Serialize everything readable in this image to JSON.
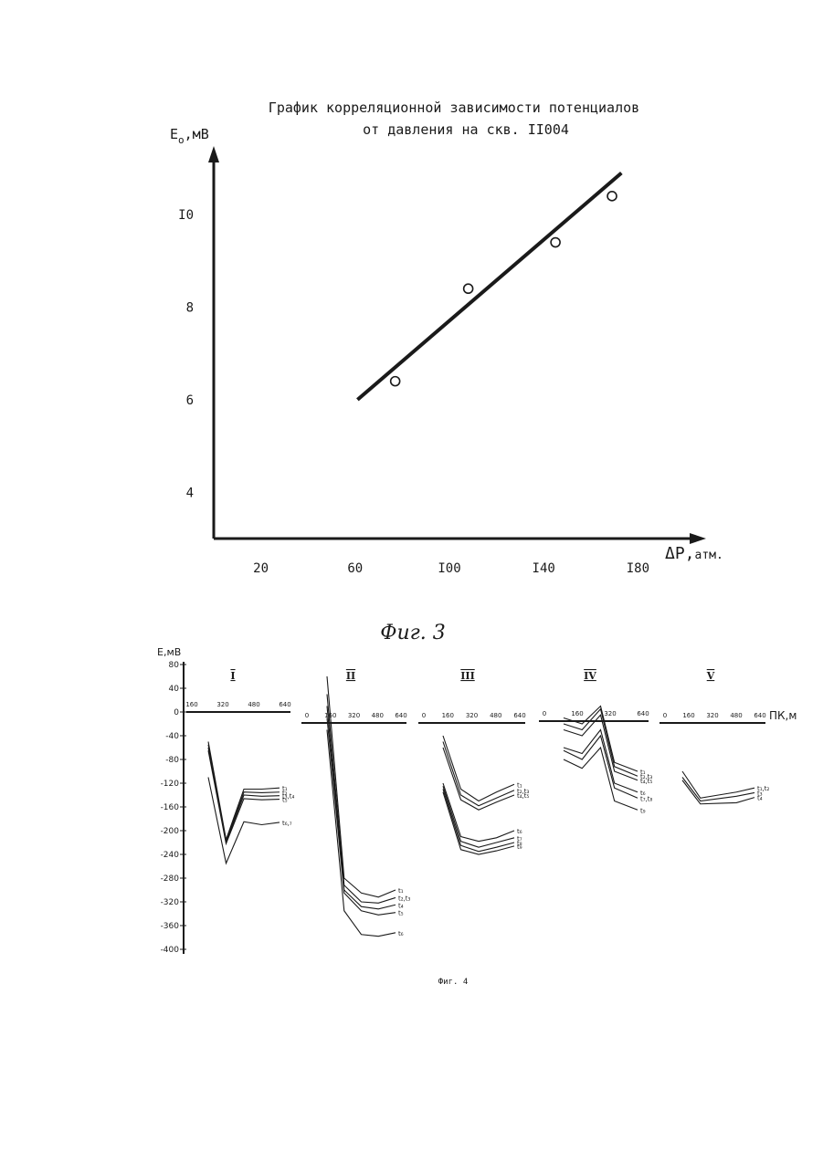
{
  "chart_data": [
    {
      "type": "scatter",
      "title": "График корреляционной зависимости потенциалов",
      "subtitle": "от давления на  скв. II004",
      "ylabel": "E",
      "ylabel_sub": "o",
      "ylabel_unit": ",мВ",
      "xlabel": "ΔP,",
      "xlabel_unit": "атм.",
      "xlim": [
        0,
        205
      ],
      "ylim": [
        3,
        12
      ],
      "x_ticks": [
        "20",
        "60",
        "I00",
        "I40",
        "I80"
      ],
      "x_tick_values": [
        20,
        60,
        100,
        140,
        180
      ],
      "y_ticks": [
        "4",
        "6",
        "8",
        "I0"
      ],
      "y_tick_values": [
        4,
        6,
        8,
        10
      ],
      "points": [
        {
          "x": 77,
          "y": 6.4
        },
        {
          "x": 108,
          "y": 8.4
        },
        {
          "x": 145,
          "y": 9.4
        },
        {
          "x": 169,
          "y": 10.4
        }
      ],
      "fit_line": {
        "x": [
          61,
          173
        ],
        "y": [
          6.0,
          10.9
        ]
      },
      "caption": "Фиг. 3"
    },
    {
      "type": "line",
      "ylabel": "E,мВ",
      "xlabel": "ПК,м",
      "ylim": [
        -400,
        80
      ],
      "y_ticks": [
        "80",
        "40",
        "0",
        "-40",
        "-80",
        "-120",
        "-160",
        "-200",
        "-240",
        "-280",
        "-320",
        "-360",
        "-400"
      ],
      "y_tick_values": [
        80,
        40,
        0,
        -40,
        -80,
        -120,
        -160,
        -200,
        -240,
        -280,
        -320,
        -360,
        -400
      ],
      "panels": [
        {
          "label": "I",
          "x_ticks": [
            "160",
            "320",
            "480",
            "640"
          ],
          "x_tick_values": [
            160,
            320,
            480,
            640
          ],
          "series": [
            {
              "name": "t₁",
              "x": [
                0,
                160,
                320,
                480,
                640
              ],
              "y": [
                -50,
                -215,
                -130,
                -130,
                -128
              ]
            },
            {
              "name": "t₂",
              "x": [
                0,
                160,
                320,
                480,
                640
              ],
              "y": [
                -55,
                -218,
                -135,
                -136,
                -135
              ]
            },
            {
              "name": "t₃,t₄",
              "x": [
                0,
                160,
                320,
                480,
                640
              ],
              "y": [
                -60,
                -220,
                -140,
                -142,
                -141
              ]
            },
            {
              "name": "t₅",
              "x": [
                0,
                160,
                320,
                480,
                640
              ],
              "y": [
                -65,
                -222,
                -146,
                -148,
                -147
              ]
            },
            {
              "name": "t₆,₇",
              "x": [
                0,
                160,
                320,
                480,
                640
              ],
              "y": [
                -110,
                -255,
                -185,
                -190,
                -186
              ]
            }
          ]
        },
        {
          "label": "II",
          "x_ticks": [
            "0",
            "160",
            "320",
            "480",
            "640"
          ],
          "x_tick_values": [
            0,
            160,
            320,
            480,
            640
          ],
          "series": [
            {
              "name": "t₁",
              "x": [
                0,
                160,
                320,
                480,
                640
              ],
              "y": [
                60,
                -280,
                -305,
                -312,
                -300
              ]
            },
            {
              "name": "t₂,t₃",
              "x": [
                0,
                160,
                320,
                480,
                640
              ],
              "y": [
                30,
                -292,
                -320,
                -322,
                -313
              ]
            },
            {
              "name": "t₄",
              "x": [
                0,
                160,
                320,
                480,
                640
              ],
              "y": [
                10,
                -300,
                -328,
                -332,
                -325
              ]
            },
            {
              "name": "t₅",
              "x": [
                0,
                160,
                320,
                480,
                640
              ],
              "y": [
                -10,
                -305,
                -335,
                -342,
                -338
              ]
            },
            {
              "name": "t₆",
              "x": [
                0,
                160,
                320,
                480,
                640
              ],
              "y": [
                -30,
                -335,
                -375,
                -378,
                -372
              ]
            }
          ]
        },
        {
          "label": "III",
          "x_ticks": [
            "0",
            "160",
            "320",
            "480",
            "640"
          ],
          "x_tick_values": [
            0,
            160,
            320,
            480,
            640
          ],
          "series": [
            {
              "name": "t₁",
              "x": [
                0,
                160,
                320,
                480,
                640
              ],
              "y": [
                -40,
                -130,
                -150,
                -135,
                -122
              ]
            },
            {
              "name": "t₂,t₃",
              "x": [
                0,
                160,
                320,
                480,
                640
              ],
              "y": [
                -50,
                -140,
                -158,
                -145,
                -132
              ]
            },
            {
              "name": "t₄,t₅",
              "x": [
                0,
                160,
                320,
                480,
                640
              ],
              "y": [
                -60,
                -148,
                -165,
                -152,
                -140
              ]
            },
            {
              "name": "t₆",
              "x": [
                0,
                160,
                320,
                480,
                640
              ],
              "y": [
                -120,
                -210,
                -218,
                -212,
                -200
              ]
            },
            {
              "name": "t₇",
              "x": [
                0,
                160,
                320,
                480,
                640
              ],
              "y": [
                -125,
                -218,
                -228,
                -220,
                -212
              ]
            },
            {
              "name": "t₈",
              "x": [
                0,
                160,
                320,
                480,
                640
              ],
              "y": [
                -130,
                -225,
                -235,
                -228,
                -220
              ]
            },
            {
              "name": "t₉",
              "x": [
                0,
                160,
                320,
                480,
                640
              ],
              "y": [
                -135,
                -232,
                -240,
                -234,
                -226
              ]
            }
          ]
        },
        {
          "label": "IV",
          "x_ticks": [
            "0",
            "160",
            "320",
            "640"
          ],
          "x_tick_values": [
            0,
            160,
            320,
            640
          ],
          "series": [
            {
              "name": "t₁",
              "x": [
                0,
                160,
                320,
                440,
                640
              ],
              "y": [
                -10,
                -20,
                10,
                -85,
                -100
              ]
            },
            {
              "name": "t₂,t₃",
              "x": [
                0,
                160,
                320,
                440,
                640
              ],
              "y": [
                -20,
                -30,
                5,
                -92,
                -108
              ]
            },
            {
              "name": "t₄,t₅",
              "x": [
                0,
                160,
                320,
                440,
                640
              ],
              "y": [
                -30,
                -40,
                -5,
                -100,
                -115
              ]
            },
            {
              "name": "t₆",
              "x": [
                0,
                160,
                320,
                440,
                640
              ],
              "y": [
                -60,
                -70,
                -30,
                -120,
                -135
              ]
            },
            {
              "name": "t₇,t₈",
              "x": [
                0,
                160,
                320,
                440,
                640
              ],
              "y": [
                -65,
                -80,
                -40,
                -128,
                -145
              ]
            },
            {
              "name": "t₉",
              "x": [
                0,
                160,
                320,
                440,
                640
              ],
              "y": [
                -80,
                -95,
                -60,
                -150,
                -165
              ]
            }
          ]
        },
        {
          "label": "V",
          "x_ticks": [
            "0",
            "160",
            "320",
            "480",
            "640"
          ],
          "x_tick_values": [
            0,
            160,
            320,
            480,
            640
          ],
          "series": [
            {
              "name": "t₁,t₂",
              "x": [
                0,
                160,
                320,
                480,
                640
              ],
              "y": [
                -100,
                -145,
                -140,
                -135,
                -128
              ]
            },
            {
              "name": "t₃",
              "x": [
                0,
                160,
                320,
                480,
                640
              ],
              "y": [
                -110,
                -150,
                -146,
                -142,
                -136
              ]
            },
            {
              "name": "t₄",
              "x": [
                0,
                160,
                320,
                480,
                640
              ],
              "y": [
                -115,
                -155,
                -154,
                -153,
                -144
              ]
            }
          ]
        }
      ],
      "caption": "Фиг. 4"
    }
  ],
  "fig3_caption": "Фиг. 3",
  "fig4_caption": "Фиг. 4"
}
